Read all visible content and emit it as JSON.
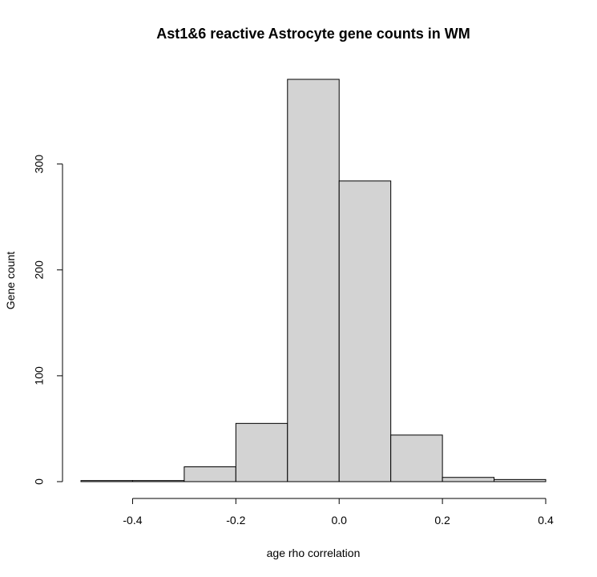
{
  "chart_data": {
    "type": "bar",
    "title": "Ast1&6 reactive Astrocyte gene counts in WM",
    "xlabel": "age rho correlation",
    "ylabel": "Gene count",
    "xlim": [
      -0.5,
      0.4
    ],
    "ylim": [
      0,
      380
    ],
    "x_ticks": [
      -0.4,
      -0.2,
      0.0,
      0.2,
      0.4
    ],
    "x_tick_labels": [
      "-0.4",
      "-0.2",
      "0.0",
      "0.2",
      "0.4"
    ],
    "y_ticks": [
      0,
      100,
      200,
      300
    ],
    "y_tick_labels": [
      "0",
      "100",
      "200",
      "300"
    ],
    "grid": false,
    "bar_color": "#d3d3d3",
    "bins": [
      {
        "from": -0.5,
        "to": -0.4,
        "count": 1
      },
      {
        "from": -0.4,
        "to": -0.3,
        "count": 1
      },
      {
        "from": -0.3,
        "to": -0.2,
        "count": 14
      },
      {
        "from": -0.2,
        "to": -0.1,
        "count": 55
      },
      {
        "from": -0.1,
        "to": 0.0,
        "count": 380
      },
      {
        "from": 0.0,
        "to": 0.1,
        "count": 284
      },
      {
        "from": 0.1,
        "to": 0.2,
        "count": 44
      },
      {
        "from": 0.2,
        "to": 0.3,
        "count": 4
      },
      {
        "from": 0.3,
        "to": 0.4,
        "count": 2
      }
    ]
  }
}
